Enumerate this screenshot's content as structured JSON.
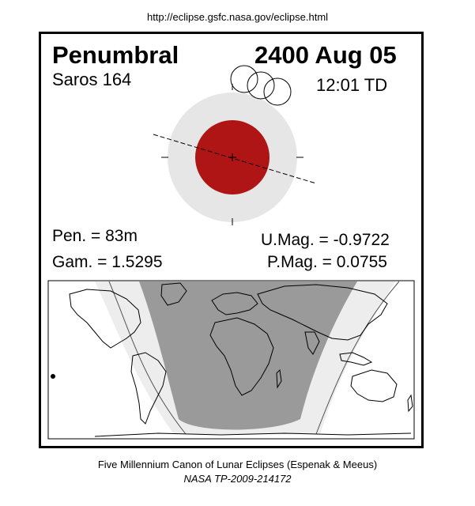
{
  "header_url": "http://eclipse.gsfc.nasa.gov/eclipse.html",
  "eclipse": {
    "type": "Penumbral",
    "date": "2400 Aug 05",
    "saros": "Saros 164",
    "time": "12:01 TD",
    "pen_duration": "Pen. =  83m",
    "gamma": "Gam. = 1.5295",
    "umbral_magnitude": "U.Mag. = -0.9722",
    "penumbral_magnitude": "P.Mag. = 0.0755"
  },
  "colors": {
    "umbra": "#b01515",
    "penumbra": "#e6e6e6",
    "night_shade": "#9a9a9a",
    "partial_shade": "#ededed"
  },
  "footer": {
    "line1": "Five Millennium Canon of Lunar Eclipses (Espenak & Meeus)",
    "line2": "NASA TP-2009-214172"
  }
}
